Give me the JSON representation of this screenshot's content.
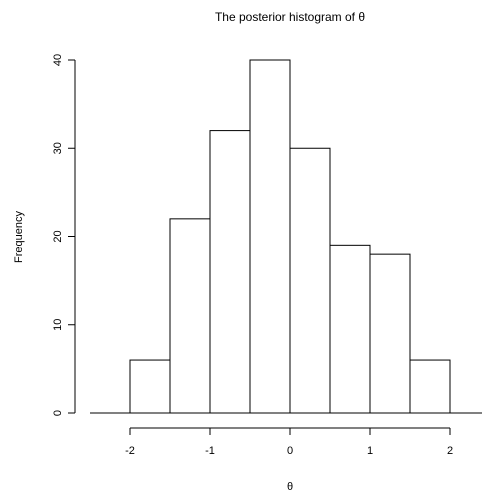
{
  "chart_data": {
    "type": "bar",
    "title": "The posterior histogram of θ",
    "xlabel": "θ",
    "ylabel": "Frequency",
    "bins": [
      {
        "from": -2.0,
        "to": -1.5,
        "count": 6
      },
      {
        "from": -1.5,
        "to": -1.0,
        "count": 22
      },
      {
        "from": -1.0,
        "to": -0.5,
        "count": 32
      },
      {
        "from": -0.5,
        "to": 0.0,
        "count": 40
      },
      {
        "from": 0.0,
        "to": 0.5,
        "count": 30
      },
      {
        "from": 0.5,
        "to": 1.0,
        "count": 19
      },
      {
        "from": 1.0,
        "to": 1.5,
        "count": 18
      },
      {
        "from": 1.5,
        "to": 2.0,
        "count": 6
      }
    ],
    "x_ticks": [
      -2,
      -1,
      0,
      1,
      2
    ],
    "x_tick_labels": [
      "-2",
      "-1",
      "0",
      "1",
      "2"
    ],
    "y_ticks": [
      0,
      10,
      20,
      30,
      40
    ],
    "y_tick_labels": [
      "0",
      "10",
      "20",
      "30",
      "40"
    ],
    "xlim": [
      -2.5,
      2.5
    ],
    "ylim": [
      0,
      40
    ],
    "grid": false,
    "legend": "none"
  }
}
